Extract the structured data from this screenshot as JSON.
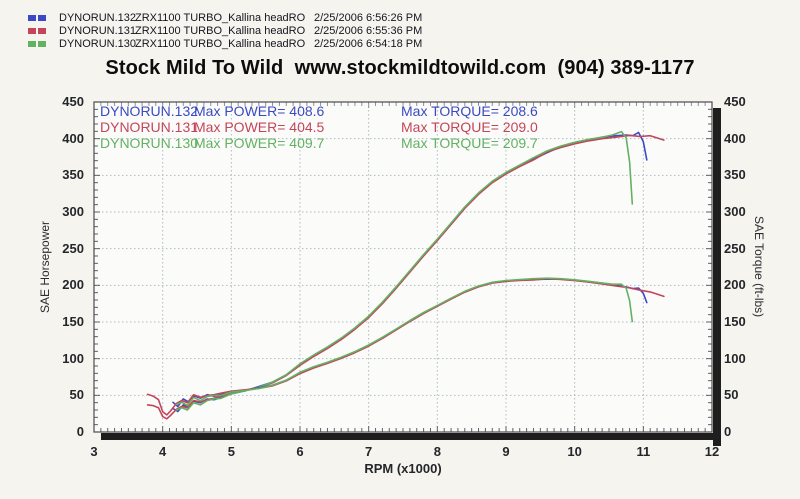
{
  "title": {
    "text": "Stock Mild To Wild  www.stockmildtowild.com  (904) 389-1177"
  },
  "header": {
    "runs": [
      {
        "name": "DYNORUN.132",
        "model": "ZRX1100 TURBO_Kallina headRO",
        "timestamp": "2/25/2006 6:56:26 PM",
        "color": "#3b49c4"
      },
      {
        "name": "DYNORUN.131",
        "model": "ZRX1100 TURBO_Kallina headRO",
        "timestamp": "2/25/2006 6:55:36 PM",
        "color": "#c4455a"
      },
      {
        "name": "DYNORUN.130",
        "model": "ZRX1100 TURBO_Kallina headRO",
        "timestamp": "2/25/2006 6:54:18 PM",
        "color": "#63b163"
      }
    ]
  },
  "chart_data": {
    "type": "line",
    "xlabel": "RPM (x1000)",
    "ylabel_left": "SAE Horsepower",
    "ylabel_right": "SAE Torque (ft-lbs)",
    "xlim": [
      3,
      12
    ],
    "ylim": [
      0,
      450
    ],
    "x_ticks": [
      3,
      4,
      5,
      6,
      7,
      8,
      9,
      10,
      11,
      12
    ],
    "y_ticks": [
      0,
      50,
      100,
      150,
      200,
      250,
      300,
      350,
      400,
      450
    ],
    "grid": true,
    "legend_position": "top-left-inside",
    "legend": [
      {
        "run": "DYNORUN.132",
        "max_power": 408.6,
        "max_torque": 208.6,
        "power_label": "Max POWER= 408.6",
        "torque_label": "Max TORQUE= 208.6",
        "color": "#3b49c4"
      },
      {
        "run": "DYNORUN.131",
        "max_power": 404.5,
        "max_torque": 209.0,
        "power_label": "Max POWER= 404.5",
        "torque_label": "Max TORQUE= 209.0",
        "color": "#c4455a"
      },
      {
        "run": "DYNORUN.130",
        "max_power": 409.7,
        "max_torque": 209.7,
        "power_label": "Max POWER= 409.7",
        "torque_label": "Max TORQUE= 209.7",
        "color": "#63b163"
      }
    ],
    "series": [
      {
        "name": "DYNORUN.132 horsepower",
        "unit": "HP",
        "color": "#3b49c4",
        "points": [
          [
            4.15,
            32
          ],
          [
            4.22,
            28
          ],
          [
            4.3,
            37
          ],
          [
            4.38,
            34
          ],
          [
            4.45,
            42
          ],
          [
            4.55,
            40
          ],
          [
            4.65,
            45
          ],
          [
            4.75,
            44
          ],
          [
            4.85,
            47
          ],
          [
            5.0,
            52
          ],
          [
            5.2,
            56
          ],
          [
            5.4,
            62
          ],
          [
            5.6,
            68
          ],
          [
            5.8,
            78
          ],
          [
            6.0,
            92
          ],
          [
            6.2,
            104
          ],
          [
            6.4,
            115
          ],
          [
            6.6,
            127
          ],
          [
            6.8,
            141
          ],
          [
            7.0,
            157
          ],
          [
            7.2,
            176
          ],
          [
            7.4,
            197
          ],
          [
            7.6,
            219
          ],
          [
            7.8,
            241
          ],
          [
            8.0,
            262
          ],
          [
            8.2,
            284
          ],
          [
            8.4,
            306
          ],
          [
            8.6,
            325
          ],
          [
            8.8,
            341
          ],
          [
            9.0,
            353
          ],
          [
            9.2,
            363
          ],
          [
            9.4,
            372
          ],
          [
            9.6,
            381
          ],
          [
            9.8,
            389
          ],
          [
            10.0,
            394
          ],
          [
            10.2,
            398
          ],
          [
            10.4,
            402
          ],
          [
            10.6,
            404
          ],
          [
            10.75,
            405
          ],
          [
            10.85,
            404
          ],
          [
            10.93,
            408.6
          ],
          [
            11.0,
            396
          ],
          [
            11.05,
            371
          ]
        ]
      },
      {
        "name": "DYNORUN.131 horsepower",
        "unit": "HP",
        "color": "#c4455a",
        "points": [
          [
            3.78,
            37
          ],
          [
            3.86,
            36
          ],
          [
            3.94,
            33
          ],
          [
            4.0,
            21
          ],
          [
            4.06,
            18
          ],
          [
            4.12,
            23
          ],
          [
            4.2,
            31
          ],
          [
            4.28,
            35
          ],
          [
            4.36,
            33
          ],
          [
            4.45,
            43
          ],
          [
            4.55,
            41
          ],
          [
            4.65,
            44
          ],
          [
            4.75,
            46
          ],
          [
            4.85,
            49
          ],
          [
            5.0,
            53
          ],
          [
            5.2,
            57
          ],
          [
            5.4,
            61
          ],
          [
            5.6,
            67
          ],
          [
            5.8,
            77
          ],
          [
            6.0,
            91
          ],
          [
            6.2,
            103
          ],
          [
            6.4,
            114
          ],
          [
            6.6,
            126
          ],
          [
            6.8,
            140
          ],
          [
            7.0,
            156
          ],
          [
            7.2,
            175
          ],
          [
            7.4,
            196
          ],
          [
            7.6,
            218
          ],
          [
            7.8,
            240
          ],
          [
            8.0,
            261
          ],
          [
            8.2,
            283
          ],
          [
            8.4,
            305
          ],
          [
            8.6,
            324
          ],
          [
            8.8,
            340
          ],
          [
            9.0,
            352
          ],
          [
            9.2,
            362
          ],
          [
            9.4,
            371
          ],
          [
            9.6,
            382
          ],
          [
            9.8,
            388
          ],
          [
            10.0,
            393
          ],
          [
            10.2,
            397
          ],
          [
            10.4,
            400
          ],
          [
            10.6,
            402
          ],
          [
            10.8,
            404.5
          ],
          [
            10.95,
            403
          ],
          [
            11.1,
            404
          ],
          [
            11.2,
            401
          ],
          [
            11.3,
            398
          ]
        ]
      },
      {
        "name": "DYNORUN.130 horsepower",
        "unit": "HP",
        "color": "#63b163",
        "points": [
          [
            4.2,
            30
          ],
          [
            4.28,
            33
          ],
          [
            4.36,
            30
          ],
          [
            4.45,
            40
          ],
          [
            4.55,
            37
          ],
          [
            4.65,
            43
          ],
          [
            4.75,
            45
          ],
          [
            4.85,
            46
          ],
          [
            5.0,
            52
          ],
          [
            5.2,
            56
          ],
          [
            5.4,
            61
          ],
          [
            5.6,
            68
          ],
          [
            5.8,
            78
          ],
          [
            6.0,
            93
          ],
          [
            6.2,
            105
          ],
          [
            6.4,
            116
          ],
          [
            6.6,
            128
          ],
          [
            6.8,
            142
          ],
          [
            7.0,
            158
          ],
          [
            7.2,
            177
          ],
          [
            7.4,
            198
          ],
          [
            7.6,
            220
          ],
          [
            7.8,
            242
          ],
          [
            8.0,
            263
          ],
          [
            8.2,
            285
          ],
          [
            8.4,
            307
          ],
          [
            8.6,
            326
          ],
          [
            8.8,
            342
          ],
          [
            9.0,
            354
          ],
          [
            9.2,
            364
          ],
          [
            9.4,
            374
          ],
          [
            9.6,
            383.3
          ],
          [
            9.8,
            390
          ],
          [
            10.0,
            395
          ],
          [
            10.2,
            399
          ],
          [
            10.4,
            402
          ],
          [
            10.55,
            405
          ],
          [
            10.68,
            409.7
          ],
          [
            10.75,
            401
          ],
          [
            10.8,
            368
          ],
          [
            10.84,
            311
          ]
        ]
      },
      {
        "name": "DYNORUN.132 torque",
        "unit": "ft-lbs",
        "color": "#3b49c4",
        "points": [
          [
            4.15,
            40.5
          ],
          [
            4.22,
            34.8
          ],
          [
            4.3,
            45.2
          ],
          [
            4.38,
            40.8
          ],
          [
            4.45,
            49.6
          ],
          [
            4.55,
            46.2
          ],
          [
            4.65,
            50.8
          ],
          [
            4.75,
            48.7
          ],
          [
            4.85,
            50.9
          ],
          [
            5.0,
            54.6
          ],
          [
            5.2,
            56.6
          ],
          [
            5.4,
            60.3
          ],
          [
            5.6,
            63.8
          ],
          [
            5.8,
            70.6
          ],
          [
            6.0,
            80.5
          ],
          [
            6.2,
            88.1
          ],
          [
            6.4,
            94.4
          ],
          [
            6.6,
            101.1
          ],
          [
            6.8,
            108.9
          ],
          [
            7.0,
            117.8
          ],
          [
            7.2,
            128.4
          ],
          [
            7.4,
            139.8
          ],
          [
            7.6,
            151.3
          ],
          [
            7.8,
            162.3
          ],
          [
            8.0,
            172.0
          ],
          [
            8.2,
            181.9
          ],
          [
            8.4,
            191.3
          ],
          [
            8.6,
            198.5
          ],
          [
            8.8,
            203.6
          ],
          [
            9.0,
            206.0
          ],
          [
            9.2,
            207.3
          ],
          [
            9.4,
            207.9
          ],
          [
            9.6,
            208.4
          ],
          [
            9.8,
            208.6
          ],
          [
            10.0,
            207.0
          ],
          [
            10.2,
            205.0
          ],
          [
            10.4,
            203.0
          ],
          [
            10.6,
            200.2
          ],
          [
            10.75,
            197.9
          ],
          [
            10.85,
            195.6
          ],
          [
            10.93,
            196.4
          ],
          [
            11.0,
            189.1
          ],
          [
            11.05,
            176.4
          ]
        ]
      },
      {
        "name": "DYNORUN.131 torque",
        "unit": "ft-lbs",
        "color": "#c4455a",
        "points": [
          [
            3.78,
            51.4
          ],
          [
            3.86,
            49.0
          ],
          [
            3.94,
            44.0
          ],
          [
            4.0,
            27.6
          ],
          [
            4.06,
            23.3
          ],
          [
            4.12,
            29.3
          ],
          [
            4.2,
            38.8
          ],
          [
            4.28,
            42.9
          ],
          [
            4.36,
            39.8
          ],
          [
            4.45,
            50.7
          ],
          [
            4.55,
            47.3
          ],
          [
            4.65,
            49.7
          ],
          [
            4.75,
            50.9
          ],
          [
            4.85,
            53.1
          ],
          [
            5.0,
            55.7
          ],
          [
            5.2,
            57.6
          ],
          [
            5.4,
            59.3
          ],
          [
            5.6,
            62.8
          ],
          [
            5.8,
            69.7
          ],
          [
            6.0,
            79.7
          ],
          [
            6.2,
            87.3
          ],
          [
            6.4,
            93.6
          ],
          [
            6.6,
            100.3
          ],
          [
            6.8,
            108.1
          ],
          [
            7.0,
            117.1
          ],
          [
            7.2,
            127.7
          ],
          [
            7.4,
            139.1
          ],
          [
            7.6,
            150.7
          ],
          [
            7.8,
            161.6
          ],
          [
            8.0,
            171.4
          ],
          [
            8.2,
            181.3
          ],
          [
            8.4,
            190.7
          ],
          [
            8.6,
            197.9
          ],
          [
            8.8,
            203.0
          ],
          [
            9.0,
            205.4
          ],
          [
            9.2,
            206.7
          ],
          [
            9.4,
            207.3
          ],
          [
            9.6,
            209.0
          ],
          [
            9.8,
            208.0
          ],
          [
            10.0,
            206.4
          ],
          [
            10.2,
            204.4
          ],
          [
            10.4,
            202.0
          ],
          [
            10.6,
            199.2
          ],
          [
            10.8,
            196.7
          ],
          [
            10.95,
            193.3
          ],
          [
            11.1,
            191.1
          ],
          [
            11.2,
            188.0
          ],
          [
            11.3,
            184.9
          ]
        ]
      },
      {
        "name": "DYNORUN.130 torque",
        "unit": "ft-lbs",
        "color": "#63b163",
        "points": [
          [
            4.2,
            37.5
          ],
          [
            4.28,
            40.5
          ],
          [
            4.36,
            36.1
          ],
          [
            4.45,
            47.2
          ],
          [
            4.55,
            42.7
          ],
          [
            4.65,
            48.6
          ],
          [
            4.75,
            49.8
          ],
          [
            4.85,
            49.8
          ],
          [
            5.0,
            54.6
          ],
          [
            5.2,
            56.6
          ],
          [
            5.4,
            59.3
          ],
          [
            5.6,
            63.8
          ],
          [
            5.8,
            70.6
          ],
          [
            6.0,
            81.4
          ],
          [
            6.2,
            88.9
          ],
          [
            6.4,
            95.2
          ],
          [
            6.6,
            101.9
          ],
          [
            6.8,
            109.7
          ],
          [
            7.0,
            118.6
          ],
          [
            7.2,
            129.1
          ],
          [
            7.4,
            140.5
          ],
          [
            7.6,
            152.0
          ],
          [
            7.8,
            163.0
          ],
          [
            8.0,
            172.7
          ],
          [
            8.2,
            182.5
          ],
          [
            8.4,
            191.9
          ],
          [
            8.6,
            199.1
          ],
          [
            8.8,
            204.1
          ],
          [
            9.0,
            206.6
          ],
          [
            9.2,
            207.8
          ],
          [
            9.4,
            209.0
          ],
          [
            9.6,
            209.7
          ],
          [
            9.8,
            209.0
          ],
          [
            10.0,
            207.5
          ],
          [
            10.2,
            205.5
          ],
          [
            10.4,
            203.0
          ],
          [
            10.55,
            201.6
          ],
          [
            10.68,
            201.5
          ],
          [
            10.75,
            195.9
          ],
          [
            10.8,
            179.0
          ],
          [
            10.84,
            150.7
          ]
        ]
      }
    ]
  }
}
